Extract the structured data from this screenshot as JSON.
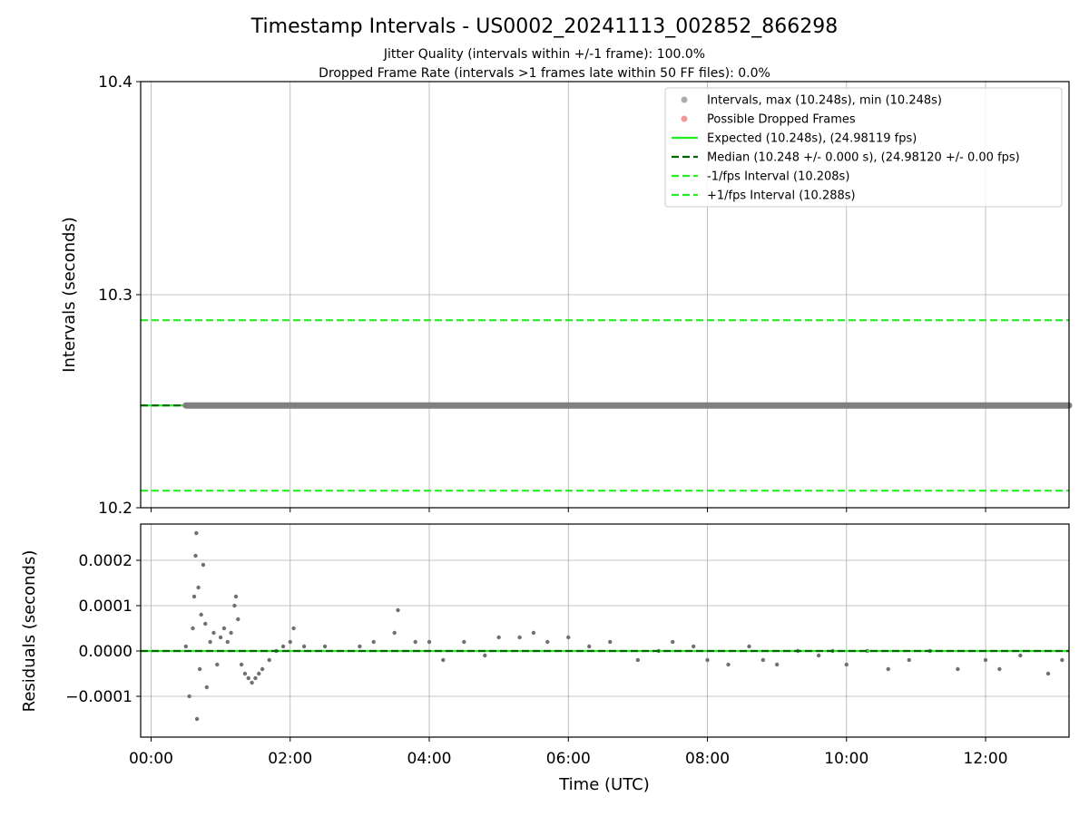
{
  "chart_data": [
    {
      "type": "scatter",
      "title": "Timestamp Intervals - US0002_20241113_002852_866298",
      "subtitles": [
        "Jitter Quality (intervals within +/-1 frame): 100.0%",
        "Dropped Frame Rate (intervals >1 frames late within 50 FF files): 0.0%"
      ],
      "xlabel": "",
      "ylabel": "Intervals (seconds)",
      "ylim": [
        10.2,
        10.4
      ],
      "yticks": [
        "10.2",
        "10.3",
        "10.4"
      ],
      "grid": true,
      "legend_position": "top-right",
      "series": [
        {
          "name": "Intervals, max (10.248s), min (10.248s)",
          "kind": "points",
          "color": "#808080",
          "x_start": "00:30",
          "x_end": "13:12",
          "y": 10.248
        },
        {
          "name": "Possible Dropped Frames",
          "kind": "points",
          "color": "#f06060",
          "values": []
        },
        {
          "name": "Expected (10.248s), (24.98119 fps)",
          "kind": "line",
          "style": "solid",
          "color": "#22ee22",
          "y": 10.248
        },
        {
          "name": "Median (10.248 +/- 0.000 s), (24.98120 +/- 0.00 fps)",
          "kind": "line",
          "style": "dashed",
          "color": "#006400",
          "y": 10.248
        },
        {
          "name": "-1/fps Interval (10.208s)",
          "kind": "line",
          "style": "dashed",
          "color": "#22ee22",
          "y": 10.208
        },
        {
          "name": "+1/fps Interval (10.288s)",
          "kind": "line",
          "style": "dashed",
          "color": "#22ee22",
          "y": 10.288
        }
      ]
    },
    {
      "type": "scatter",
      "xlabel": "Time (UTC)",
      "ylabel": "Residuals (seconds)",
      "xticks": [
        "00:00",
        "02:00",
        "04:00",
        "06:00",
        "08:00",
        "10:00",
        "12:00"
      ],
      "xlim": [
        "-00:09",
        "13:12"
      ],
      "ylim": [
        -0.00019,
        0.00028
      ],
      "yticks": [
        "−0.0001",
        "0.0000",
        "0.0001",
        "0.0002"
      ],
      "grid": true,
      "zero_lines": {
        "expected_color": "#22ee22",
        "median_color": "#006400"
      },
      "points_color": "#707070",
      "x_unit": "hours",
      "residuals": [
        [
          0.5,
          1e-05
        ],
        [
          0.55,
          -0.0001
        ],
        [
          0.6,
          5e-05
        ],
        [
          0.62,
          0.00012
        ],
        [
          0.64,
          0.00021
        ],
        [
          0.65,
          0.00026
        ],
        [
          0.66,
          -0.00015
        ],
        [
          0.68,
          0.00014
        ],
        [
          0.7,
          -4e-05
        ],
        [
          0.72,
          8e-05
        ],
        [
          0.75,
          0.00019
        ],
        [
          0.78,
          6e-05
        ],
        [
          0.8,
          -8e-05
        ],
        [
          0.85,
          2e-05
        ],
        [
          0.9,
          4e-05
        ],
        [
          0.95,
          -3e-05
        ],
        [
          1.0,
          3e-05
        ],
        [
          1.05,
          5e-05
        ],
        [
          1.1,
          2e-05
        ],
        [
          1.15,
          4e-05
        ],
        [
          1.2,
          0.0001
        ],
        [
          1.22,
          0.00012
        ],
        [
          1.25,
          7e-05
        ],
        [
          1.3,
          -3e-05
        ],
        [
          1.35,
          -5e-05
        ],
        [
          1.4,
          -6e-05
        ],
        [
          1.45,
          -7e-05
        ],
        [
          1.5,
          -6e-05
        ],
        [
          1.55,
          -5e-05
        ],
        [
          1.6,
          -4e-05
        ],
        [
          1.7,
          -2e-05
        ],
        [
          1.8,
          0.0
        ],
        [
          1.9,
          1e-05
        ],
        [
          2.0,
          2e-05
        ],
        [
          2.05,
          5e-05
        ],
        [
          2.2,
          1e-05
        ],
        [
          2.5,
          1e-05
        ],
        [
          3.0,
          1e-05
        ],
        [
          3.2,
          2e-05
        ],
        [
          3.5,
          4e-05
        ],
        [
          3.55,
          9e-05
        ],
        [
          3.8,
          2e-05
        ],
        [
          4.0,
          2e-05
        ],
        [
          4.2,
          -2e-05
        ],
        [
          4.5,
          2e-05
        ],
        [
          4.8,
          -1e-05
        ],
        [
          5.0,
          3e-05
        ],
        [
          5.3,
          3e-05
        ],
        [
          5.5,
          4e-05
        ],
        [
          5.7,
          2e-05
        ],
        [
          6.0,
          3e-05
        ],
        [
          6.3,
          1e-05
        ],
        [
          6.6,
          2e-05
        ],
        [
          7.0,
          -2e-05
        ],
        [
          7.3,
          0.0
        ],
        [
          7.5,
          2e-05
        ],
        [
          7.8,
          1e-05
        ],
        [
          8.0,
          -2e-05
        ],
        [
          8.3,
          -3e-05
        ],
        [
          8.6,
          1e-05
        ],
        [
          8.8,
          -2e-05
        ],
        [
          9.0,
          -3e-05
        ],
        [
          9.3,
          0.0
        ],
        [
          9.6,
          -1e-05
        ],
        [
          9.8,
          0.0
        ],
        [
          10.0,
          -3e-05
        ],
        [
          10.3,
          0.0
        ],
        [
          10.6,
          -4e-05
        ],
        [
          10.9,
          -2e-05
        ],
        [
          11.2,
          0.0
        ],
        [
          11.6,
          -4e-05
        ],
        [
          12.0,
          -2e-05
        ],
        [
          12.2,
          -4e-05
        ],
        [
          12.5,
          -1e-05
        ],
        [
          12.9,
          -5e-05
        ],
        [
          13.1,
          -2e-05
        ]
      ]
    }
  ]
}
